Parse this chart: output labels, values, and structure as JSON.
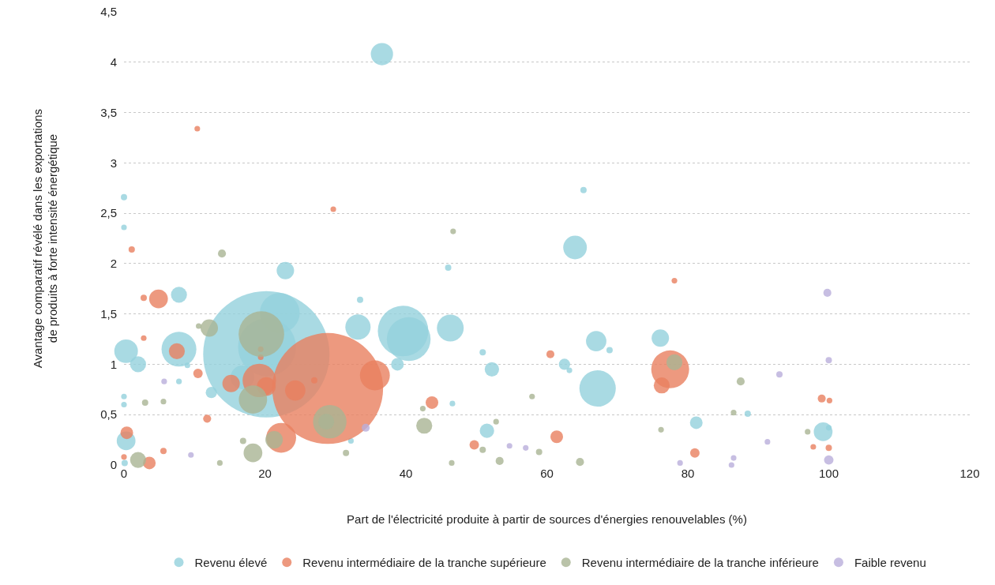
{
  "chart_data": {
    "type": "bubble",
    "xlabel": "Part de l'électricité produite à partir de sources d'énergies renouvelables (%)",
    "ylabel": "Avantage comparatif révélé dans les exportations\nde produits à forte intensité énergétique",
    "xlim": [
      0,
      120
    ],
    "xticks": [
      0,
      20,
      40,
      60,
      80,
      100,
      120
    ],
    "ylim": [
      0,
      4.5
    ],
    "yticks": [
      0,
      {
        "value": 0.5,
        "label": "0,5"
      },
      1,
      {
        "value": 1.5,
        "label": "1,5"
      },
      2,
      {
        "value": 2.5,
        "label": "2,5"
      },
      3,
      {
        "value": 3.5,
        "label": "3,5"
      },
      4,
      {
        "value": 4.5,
        "label": "4,5"
      }
    ],
    "grid": "y",
    "legend": "bottom",
    "series": [
      {
        "name": "Revenu élevé",
        "color": "#94d1dc",
        "x": [
          36.6,
          0,
          0,
          65.2,
          64.0,
          22.9,
          46,
          7.8,
          33.5,
          22.1,
          20.2,
          20.3,
          33.2,
          39.6,
          40.4,
          46.3,
          0.3,
          2,
          7.8,
          12.4,
          38.8,
          50.9,
          67,
          68.9,
          62.5,
          63.2,
          52.2,
          76.1,
          67.2,
          46.6,
          51.5,
          81.2,
          88.5,
          99.2,
          100,
          0.3,
          0,
          0,
          0.1,
          7.8,
          9,
          16.8,
          32.2
        ],
        "values": [
          4.08,
          2.66,
          2.36,
          2.73,
          2.16,
          1.93,
          1.96,
          1.69,
          1.64,
          1.51,
          1.1,
          1.17,
          1.37,
          1.33,
          1.25,
          1.36,
          1.13,
          1.0,
          1.15,
          0.72,
          1.0,
          1.12,
          1.23,
          1.14,
          1.0,
          0.94,
          0.95,
          1.26,
          0.76,
          0.61,
          0.34,
          0.42,
          0.51,
          0.33,
          0.37,
          0.24,
          0.68,
          0.6,
          0.02,
          0.83,
          0.99,
          0.87,
          0.24
        ],
        "sizes": [
          0.031,
          0.0025,
          0.002,
          0.0025,
          0.035,
          0.019,
          0.0025,
          0.016,
          0.0025,
          0.1,
          1.0,
          0.21,
          0.04,
          0.16,
          0.12,
          0.045,
          0.035,
          0.016,
          0.076,
          0.008,
          0.01,
          0.0025,
          0.026,
          0.0025,
          0.008,
          0.002,
          0.013,
          0.019,
          0.083,
          0.002,
          0.013,
          0.01,
          0.0025,
          0.022,
          0.002,
          0.022,
          0.002,
          0.002,
          0.0025,
          0.002,
          0.002,
          0.035,
          0.002
        ]
      },
      {
        "name": "Revenu intermédiaire de la tranche supérieure",
        "color": "#e8805f",
        "x": [
          10.4,
          29.7,
          1.1,
          4.9,
          2.8,
          2.8,
          7.5,
          10.5,
          15.2,
          19.4,
          19.4,
          19.2,
          20.2,
          24.3,
          27,
          28.9,
          35.6,
          22.3,
          11.8,
          5.6,
          0.4,
          3.6,
          0,
          43.7,
          60.5,
          49.7,
          61.4,
          77.5,
          76.3,
          78.1,
          81.0,
          99,
          100.1,
          100,
          97.8
        ],
        "values": [
          3.34,
          2.54,
          2.14,
          1.65,
          1.66,
          1.26,
          1.13,
          0.91,
          0.81,
          1.15,
          1.07,
          0.84,
          0.78,
          0.74,
          0.84,
          0.76,
          0.89,
          0.27,
          0.46,
          0.14,
          0.32,
          0.02,
          0.08,
          0.62,
          1.1,
          0.2,
          0.28,
          0.95,
          0.79,
          1.83,
          0.12,
          0.66,
          0.64,
          0.17,
          0.18
        ],
        "sizes": [
          0.002,
          0.002,
          0.0025,
          0.022,
          0.0025,
          0.002,
          0.016,
          0.0056,
          0.019,
          0.002,
          0.002,
          0.07,
          0.022,
          0.026,
          0.0025,
          0.77,
          0.056,
          0.056,
          0.004,
          0.0025,
          0.01,
          0.01,
          0.002,
          0.01,
          0.004,
          0.0056,
          0.01,
          0.09,
          0.016,
          0.002,
          0.0056,
          0.004,
          0.002,
          0.0025,
          0.002
        ]
      },
      {
        "name": "Revenu intermédiaire de la tranche inférieure",
        "color": "#a9b494",
        "x": [
          13.9,
          12.1,
          10.6,
          19.5,
          18.3,
          29.2,
          28.7,
          21.3,
          18.3,
          16.9,
          3,
          5.6,
          2,
          13.6,
          31.5,
          42.6,
          42.4,
          46.5,
          50.9,
          52.8,
          53.3,
          58.9,
          57.9,
          64.7,
          76.2,
          78.1,
          87.5,
          86.5,
          97,
          46.7
        ],
        "values": [
          2.1,
          1.36,
          1.38,
          1.3,
          0.65,
          0.43,
          0.43,
          0.25,
          0.12,
          0.24,
          0.62,
          0.63,
          0.05,
          0.02,
          0.12,
          0.39,
          0.56,
          0.02,
          0.15,
          0.43,
          0.04,
          0.13,
          0.68,
          0.03,
          0.35,
          1.02,
          0.83,
          0.52,
          0.33,
          2.32
        ],
        "sizes": [
          0.004,
          0.019,
          0.002,
          0.13,
          0.05,
          0.07,
          0.016,
          0.019,
          0.022,
          0.0025,
          0.0025,
          0.002,
          0.016,
          0.002,
          0.0025,
          0.016,
          0.002,
          0.002,
          0.0025,
          0.002,
          0.004,
          0.0025,
          0.002,
          0.004,
          0.002,
          0.016,
          0.004,
          0.002,
          0.002,
          0.002
        ]
      },
      {
        "name": "Faible revenu",
        "color": "#b9aedb",
        "x": [
          99.8,
          100,
          93,
          5.7,
          9.5,
          34.3,
          54.7,
          57,
          100,
          86.5,
          86.2,
          78.9,
          91.3
        ],
        "values": [
          1.71,
          1.04,
          0.9,
          0.83,
          0.1,
          0.37,
          0.19,
          0.17,
          0.05,
          0.07,
          0.0,
          0.02,
          0.23
        ],
        "sizes": [
          0.004,
          0.0025,
          0.0025,
          0.002,
          0.002,
          0.004,
          0.002,
          0.002,
          0.0056,
          0.002,
          0.002,
          0.002,
          0.002
        ]
      }
    ]
  }
}
